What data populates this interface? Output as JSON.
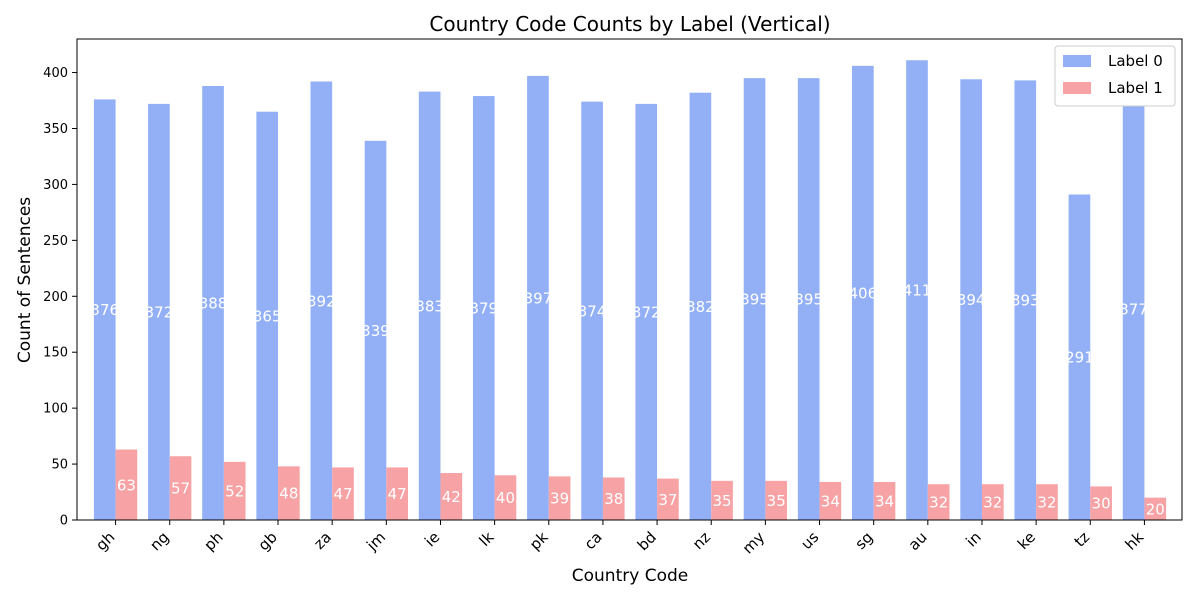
{
  "chart_data": {
    "type": "bar",
    "title": "Country Code Counts by Label (Vertical)",
    "xlabel": "Country Code",
    "ylabel": "Count of Sentences",
    "categories": [
      "gh",
      "ng",
      "ph",
      "gb",
      "za",
      "jm",
      "ie",
      "lk",
      "pk",
      "ca",
      "bd",
      "nz",
      "my",
      "us",
      "sg",
      "au",
      "in",
      "ke",
      "tz",
      "hk"
    ],
    "series": [
      {
        "name": "Label 0",
        "color": "#93b0f7",
        "values": [
          376,
          372,
          388,
          365,
          392,
          339,
          383,
          379,
          397,
          374,
          372,
          382,
          395,
          395,
          406,
          411,
          394,
          393,
          291,
          377
        ]
      },
      {
        "name": "Label 1",
        "color": "#f7a3a6",
        "values": [
          63,
          57,
          52,
          48,
          47,
          47,
          42,
          40,
          39,
          38,
          37,
          35,
          35,
          34,
          34,
          32,
          32,
          32,
          30,
          20
        ]
      }
    ],
    "ylim": [
      0,
      430
    ],
    "yticks": [
      0,
      50,
      100,
      150,
      200,
      250,
      300,
      350,
      400
    ],
    "legend_position": "top-right",
    "grid": false
  }
}
